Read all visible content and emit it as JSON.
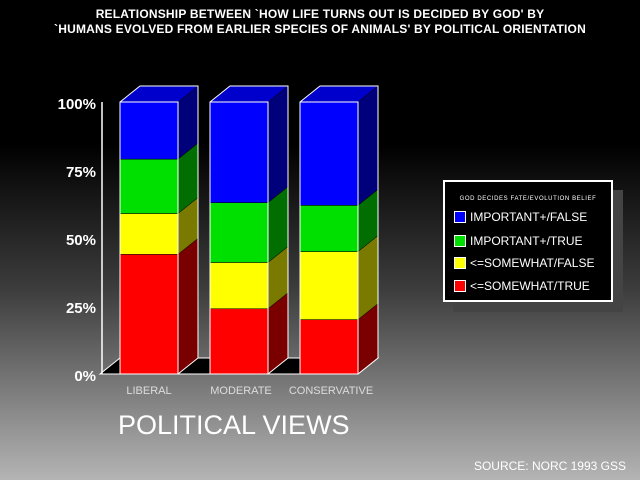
{
  "chart_data": {
    "type": "bar",
    "stacked": true,
    "percent": true,
    "title_lines": [
      "RELATIONSHIP BETWEEN `HOW LIFE TURNS OUT IS DECIDED BY GOD' BY",
      "`HUMANS EVOLVED FROM EARLIER SPECIES OF ANIMALS' BY POLITICAL ORIENTATION"
    ],
    "xlabel": "POLITICAL VIEWS",
    "categories": [
      "LIBERAL",
      "MODERATE",
      "CONSERVATIVE"
    ],
    "y_ticks": [
      "0%",
      "25%",
      "50%",
      "75%",
      "100%"
    ],
    "ylim": [
      0,
      100
    ],
    "legend_title": "GOD DECIDES FATE/EVOLUTION BELIEF",
    "legend_placement": "right",
    "series": [
      {
        "name": "<=SOMEWHAT/TRUE",
        "color": "#ff0000",
        "side_color": "#7a0000",
        "values": [
          44,
          24,
          20
        ]
      },
      {
        "name": "<=SOMEWHAT/FALSE",
        "color": "#ffff00",
        "side_color": "#7a7a00",
        "values": [
          15,
          17,
          25
        ]
      },
      {
        "name": "IMPORTANT+/TRUE",
        "color": "#00e000",
        "side_color": "#006e00",
        "values": [
          20,
          22,
          17
        ]
      },
      {
        "name": "IMPORTANT+/FALSE",
        "color": "#0000ff",
        "side_color": "#00007a",
        "values": [
          21,
          37,
          38
        ]
      }
    ],
    "legend_order": [
      3,
      2,
      1,
      0
    ],
    "source": "SOURCE: NORC 1993 GSS"
  }
}
